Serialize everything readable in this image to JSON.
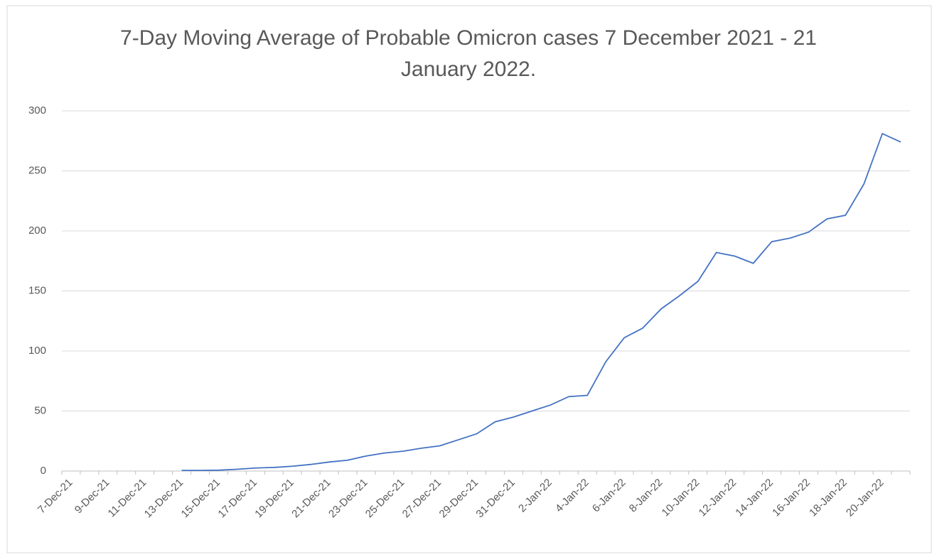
{
  "chart_data": {
    "type": "line",
    "title": "7-Day Moving Average of Probable Omicron cases 7 December 2021 - 21 January 2022.",
    "categories": [
      "7-Dec-21",
      null,
      "9-Dec-21",
      null,
      "11-Dec-21",
      null,
      "13-Dec-21",
      null,
      "15-Dec-21",
      null,
      "17-Dec-21",
      null,
      "19-Dec-21",
      null,
      "21-Dec-21",
      null,
      "23-Dec-21",
      null,
      "25-Dec-21",
      null,
      "27-Dec-21",
      null,
      "29-Dec-21",
      null,
      "31-Dec-21",
      null,
      "2-Jan-22",
      null,
      "4-Jan-22",
      null,
      "6-Jan-22",
      null,
      "8-Jan-22",
      null,
      "10-Jan-22",
      null,
      "12-Jan-22",
      null,
      "14-Jan-22",
      null,
      "16-Jan-22",
      null,
      "18-Jan-22",
      null,
      "20-Jan-22",
      null
    ],
    "series": [
      {
        "color": "#4472c4",
        "values": [
          null,
          null,
          null,
          null,
          null,
          null,
          0.5,
          0.5,
          0.7,
          1.5,
          2.5,
          3,
          4,
          5.5,
          7.5,
          9,
          12.5,
          15,
          16.5,
          19,
          21,
          26,
          31,
          41,
          45,
          50,
          55,
          62,
          63,
          91,
          111,
          119,
          135,
          146,
          158,
          182,
          179,
          173,
          191,
          194,
          199,
          210,
          213,
          239,
          281,
          274
        ]
      }
    ],
    "ylim": [
      0,
      300
    ],
    "yticks": [
      0,
      50,
      100,
      150,
      200,
      250,
      300
    ],
    "grid": true
  }
}
